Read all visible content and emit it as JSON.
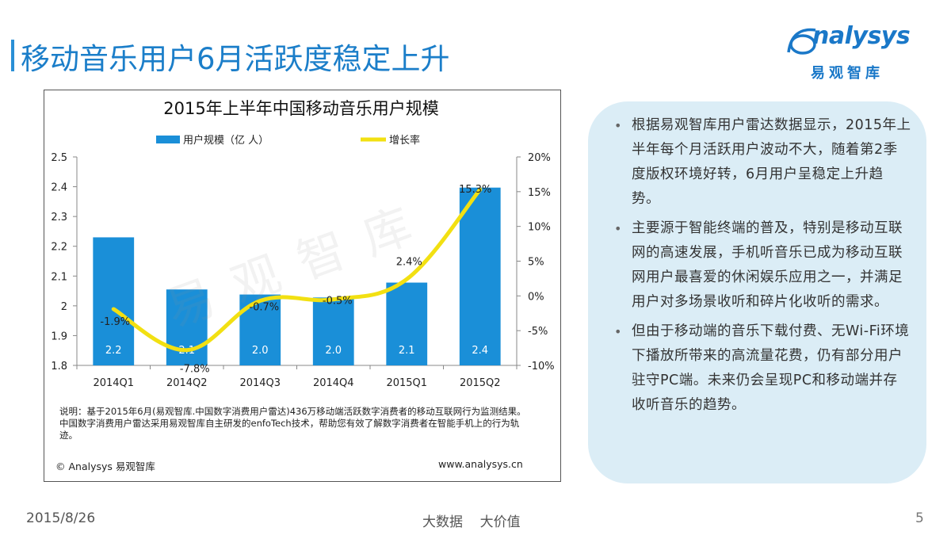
{
  "page": {
    "title": "移动音乐用户6月活跃度稳定上升",
    "footer_date": "2015/8/26",
    "footer_slogan": "大数据    大价值",
    "page_number": "5"
  },
  "logo": {
    "word": "nalysys",
    "cn": "易观智库"
  },
  "watermark": "易观智库",
  "chart_data": {
    "type": "bar",
    "title": "2015年上半年中国移动音乐用户规模",
    "categories": [
      "2014Q1",
      "2014Q2",
      "2014Q3",
      "2014Q4",
      "2015Q1",
      "2015Q2"
    ],
    "series": [
      {
        "name": "用户规模（亿 人）",
        "kind": "bar",
        "axis": "left",
        "values": [
          2.23,
          2.055,
          2.038,
          2.028,
          2.078,
          2.397
        ],
        "labels": [
          "2.2",
          "2.1",
          "2.0",
          "2.0",
          "2.1",
          "2.4"
        ],
        "color": "#1a8fd8"
      },
      {
        "name": "增长率",
        "kind": "line",
        "axis": "right",
        "values": [
          -1.9,
          -7.8,
          -0.7,
          -0.5,
          2.4,
          15.3
        ],
        "labels": [
          "-1.9%",
          "-7.8%",
          "-0.7%",
          "-0.5%",
          "2.4%",
          "15.3%"
        ],
        "color": "#f2e012"
      }
    ],
    "y_left": {
      "min": 1.8,
      "max": 2.5,
      "ticks": [
        "1.8",
        "1.9",
        "2",
        "2.1",
        "2.2",
        "2.3",
        "2.4",
        "2.5"
      ]
    },
    "y_right": {
      "min": -10,
      "max": 20,
      "ticks": [
        "-10%",
        "-5%",
        "0%",
        "5%",
        "10%",
        "15%",
        "20%"
      ]
    },
    "legend": "top"
  },
  "chart_note": {
    "text": "说明：基于2015年6月(易观智库.中国数字消费用户雷达)436万移动端活跃数字消费者的移动互联网行为监测结果。中国数字消费用户雷达采用易观智库自主研发的enfoTech技术，帮助您有效了解数字消费者在智能手机上的行为轨迹。",
    "copyright": "© Analysys 易观智库",
    "website": "www.analysys.cn"
  },
  "bullets": [
    "根据易观智库用户雷达数据显示，2015年上半年每个月活跃用户波动不大，随着第2季度版权环境好转，6月用户呈稳定上升趋势。",
    "主要源于智能终端的普及，特别是移动互联网的高速发展，手机听音乐已成为移动互联网用户最喜爱的休闲娱乐应用之一，并满足用户对多场景收听和碎片化收听的需求。",
    "但由于移动端的音乐下载付费、无Wi-Fi环境下播放所带来的高流量花费，仍有部分用户驻守PC端。未来仍会呈现PC和移动端并存收听音乐的趋势。"
  ],
  "bullet_symbol": "•"
}
